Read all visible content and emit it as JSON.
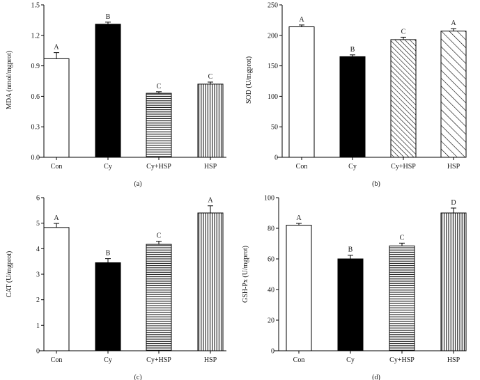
{
  "chart_data": [
    {
      "type": "bar",
      "panel_label": "(a)",
      "ylabel": "MDA (nmol/mgprot)",
      "ylim": [
        0,
        1.5
      ],
      "yticks": [
        "0.0",
        "0.3",
        "0.6",
        "0.9",
        "1.2",
        "1.5"
      ],
      "categories": [
        "Con",
        "Cy",
        "Cy+HSP",
        "HSP"
      ],
      "values": [
        0.97,
        1.31,
        0.63,
        0.72
      ],
      "errors": [
        0.06,
        0.02,
        0.015,
        0.02
      ],
      "sig_letters": [
        "A",
        "B",
        "C",
        "C"
      ],
      "fills": [
        "white",
        "black",
        "hlines",
        "vlines"
      ]
    },
    {
      "type": "bar",
      "panel_label": "(b)",
      "ylabel": "SOD (U/mgprot)",
      "ylim": [
        0,
        250
      ],
      "yticks": [
        "0",
        "50",
        "100",
        "150",
        "200",
        "250"
      ],
      "categories": [
        "Con",
        "Cy",
        "Cy+HSP",
        "HSP"
      ],
      "values": [
        214,
        165,
        193,
        207
      ],
      "errors": [
        3,
        3,
        4,
        4
      ],
      "sig_letters": [
        "A",
        "B",
        "C",
        "A"
      ],
      "fills": [
        "white",
        "black",
        "diag",
        "diag-sparse"
      ]
    },
    {
      "type": "bar",
      "panel_label": "(c)",
      "ylabel": "CAT (U/mgprot)",
      "ylim": [
        0,
        6
      ],
      "yticks": [
        "0",
        "1",
        "2",
        "3",
        "4",
        "5",
        "6"
      ],
      "categories": [
        "Con",
        "Cy",
        "Cy+HSP",
        "HSP"
      ],
      "values": [
        4.83,
        3.45,
        4.17,
        5.4
      ],
      "errors": [
        0.16,
        0.16,
        0.12,
        0.28
      ],
      "sig_letters": [
        "A",
        "B",
        "C",
        "A"
      ],
      "fills": [
        "white",
        "black",
        "hlines",
        "vlines"
      ]
    },
    {
      "type": "bar",
      "panel_label": "(d)",
      "ylabel": "GSH-Px (U/mgprot)",
      "ylim": [
        0,
        100
      ],
      "yticks": [
        "0",
        "20",
        "40",
        "60",
        "80",
        "100"
      ],
      "categories": [
        "Con",
        "Cy",
        "Cy+HSP",
        "HSP"
      ],
      "values": [
        82,
        60,
        68.5,
        90
      ],
      "errors": [
        1.2,
        2.4,
        1.8,
        3.2
      ],
      "sig_letters": [
        "A",
        "B",
        "C",
        "D"
      ],
      "fills": [
        "white",
        "black",
        "hlines",
        "vlines"
      ]
    }
  ]
}
